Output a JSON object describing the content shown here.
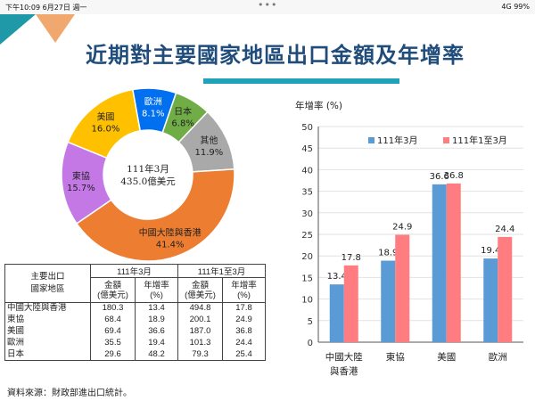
{
  "status_bar": {
    "time": "下午10:09",
    "date": "6月27日 週一",
    "dots": "•••",
    "battery": "4G 99%"
  },
  "title": "近期對主要國家地區出口金額及年增率",
  "colors": {
    "asia": "#ed7d31",
    "asean": "#c478e6",
    "usa": "#ffc000",
    "europe": "#0070f0",
    "japan": "#70ad47",
    "other": "#a9a9a9",
    "bar_a": "#5b9bd5",
    "bar_b": "#ff7c80"
  },
  "table": {
    "header_region": "主要出口國家地區",
    "header_region_lines": [
      "主要出口",
      "國家地區"
    ],
    "group1": "111年3月",
    "group2": "111年1至3月",
    "sub_amount": [
      "金額",
      "(億美元)"
    ],
    "sub_growth": [
      "年增率",
      "(%)"
    ],
    "rows": [
      {
        "name": "中國大陸與香港",
        "v1": "180.3",
        "v2": "13.4",
        "v3": "494.8",
        "v4": "17.8"
      },
      {
        "name": "東協",
        "v1": "68.4",
        "v2": "18.9",
        "v3": "200.1",
        "v4": "24.9"
      },
      {
        "name": "美國",
        "v1": "69.4",
        "v2": "36.6",
        "v3": "187.0",
        "v4": "36.8"
      },
      {
        "name": "歐洲",
        "v1": "35.5",
        "v2": "19.4",
        "v3": "101.3",
        "v4": "24.4"
      },
      {
        "name": "日本",
        "v1": "29.6",
        "v2": "48.2",
        "v3": "79.3",
        "v4": "25.4"
      }
    ]
  },
  "source": "資料來源：財政部進出口統計。",
  "chart_data": [
    {
      "type": "pie",
      "center_label": [
        "111年3月",
        "435.0億美元"
      ],
      "slices": [
        {
          "name": "歐洲",
          "value": 8.1,
          "label": "8.1%",
          "color": "#0070f0"
        },
        {
          "name": "日本",
          "value": 6.8,
          "label": "6.8%",
          "color": "#70ad47"
        },
        {
          "name": "其他",
          "value": 11.9,
          "label": "11.9%",
          "color": "#a9a9a9"
        },
        {
          "name": "中國大陸與香港",
          "value": 41.4,
          "label": "41.4%",
          "color": "#ed7d31"
        },
        {
          "name": "東協",
          "value": 15.7,
          "label": "15.7%",
          "color": "#c478e6"
        },
        {
          "name": "美國",
          "value": 16.0,
          "label": "16.0%",
          "color": "#ffc000"
        }
      ]
    },
    {
      "type": "bar",
      "ylabel": "年增率 (%)",
      "ylim": [
        0,
        50
      ],
      "yticks": [
        0,
        5,
        10,
        15,
        20,
        25,
        30,
        35,
        40,
        45,
        50
      ],
      "legend": "top",
      "categories": [
        [
          "中國大陸",
          "與香港"
        ],
        [
          "東協"
        ],
        [
          "美國"
        ],
        [
          "歐洲"
        ]
      ],
      "series": [
        {
          "name": "111年3月",
          "values": [
            13.4,
            18.9,
            36.6,
            19.4
          ],
          "labels": [
            "13.4",
            "18.9",
            "36.6",
            "19.4"
          ],
          "color": "#5b9bd5"
        },
        {
          "name": "111年1至3月",
          "values": [
            17.8,
            24.9,
            36.8,
            24.4
          ],
          "labels": [
            "17.8",
            "24.9",
            "36.8",
            "24.4"
          ],
          "color": "#ff7c80"
        }
      ]
    }
  ]
}
